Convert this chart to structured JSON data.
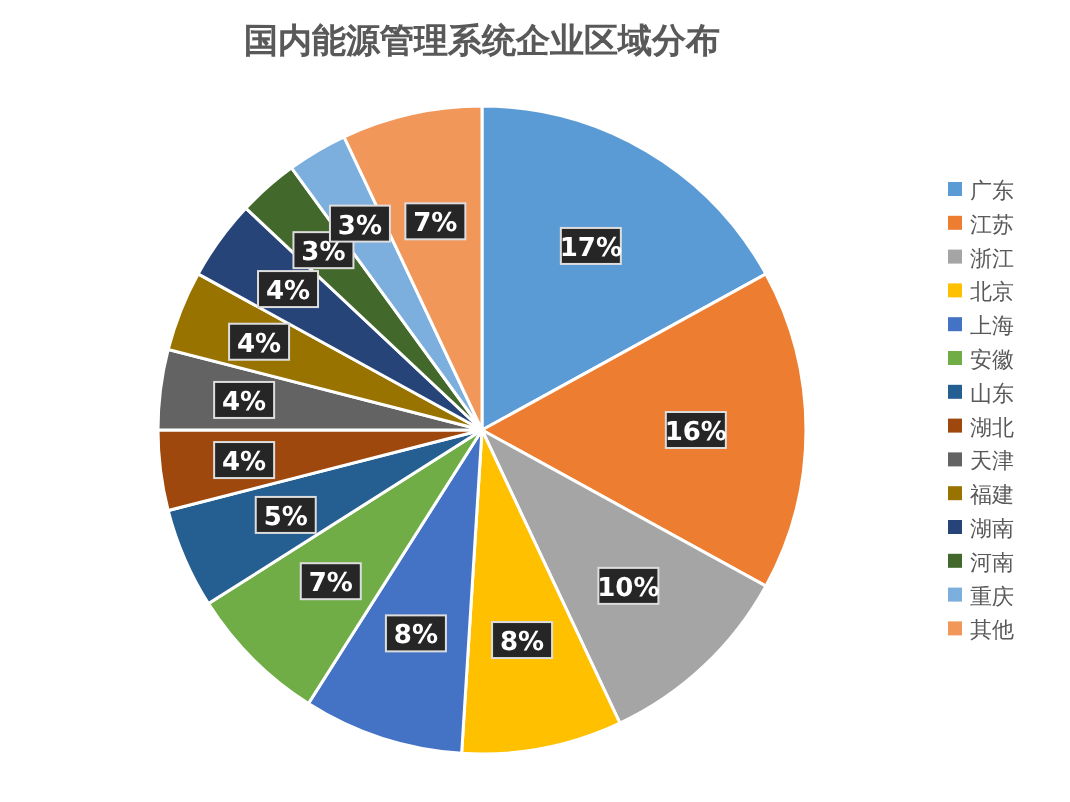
{
  "chart_data": {
    "type": "pie",
    "title": "国内能源管理系统企业区域分布",
    "categories": [
      "广东",
      "江苏",
      "浙江",
      "北京",
      "上海",
      "安徽",
      "山东",
      "湖北",
      "天津",
      "福建",
      "湖南",
      "河南",
      "重庆",
      "其他"
    ],
    "values": [
      17,
      16,
      10,
      8,
      8,
      7,
      5,
      4,
      4,
      4,
      4,
      3,
      3,
      7
    ],
    "colors": [
      "#5b9bd5",
      "#ed7d31",
      "#a5a5a5",
      "#ffc000",
      "#4472c4",
      "#70ad47",
      "#255e91",
      "#9e480e",
      "#636363",
      "#997300",
      "#264478",
      "#43682b",
      "#7cafdd",
      "#f1975a"
    ],
    "value_labels": [
      "17%",
      "16%",
      "10%",
      "8%",
      "8%",
      "7%",
      "5%",
      "4%",
      "4%",
      "4%",
      "4%",
      "3%",
      "3%",
      "7%"
    ],
    "legend": "right"
  }
}
